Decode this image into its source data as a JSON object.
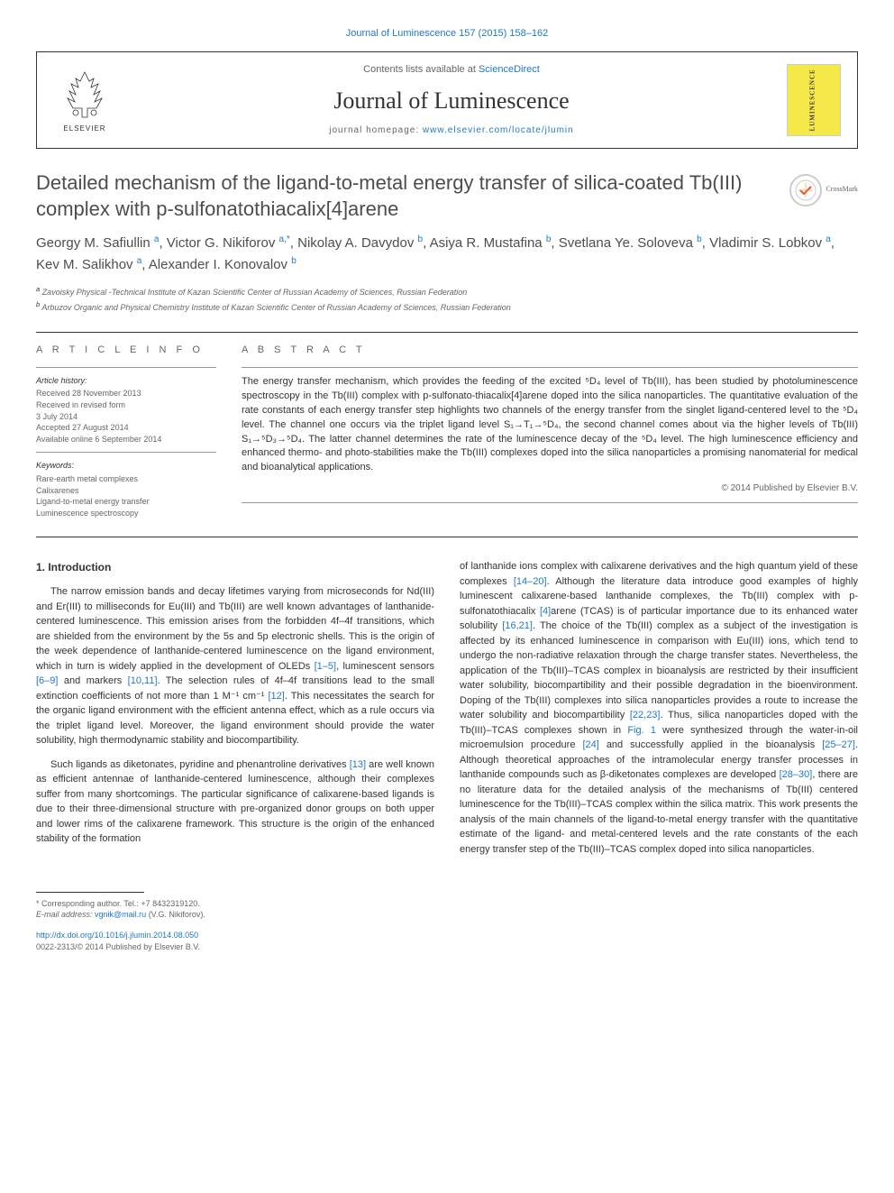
{
  "top_link": "Journal of Luminescence 157 (2015) 158–162",
  "header": {
    "contents_prefix": "Contents lists available at ",
    "contents_link": "ScienceDirect",
    "journal_name": "Journal of Luminescence",
    "homepage_prefix": "journal homepage: ",
    "homepage_link": "www.elsevier.com/locate/jlumin",
    "elsevier_label": "ELSEVIER",
    "cover_label": "LUMINESCENCE"
  },
  "crossmark_label": "CrossMark",
  "title": "Detailed mechanism of the ligand-to-metal energy transfer of silica-coated Tb(III) complex with p-sulfonatothiacalix[4]arene",
  "authors_html": "Georgy M. Safiullin <sup>a</sup>, Victor G. Nikiforov <sup>a,*</sup>, Nikolay A. Davydov <sup>b</sup>, Asiya R. Mustafina <sup>b</sup>, Svetlana Ye. Soloveva <sup>b</sup>, Vladimir S. Lobkov <sup>a</sup>, Kev M. Salikhov <sup>a</sup>, Alexander I. Konovalov <sup>b</sup>",
  "affiliations": {
    "a": "Zavoisky Physical -Technical Institute of Kazan Scientific Center of Russian Academy of Sciences, Russian Federation",
    "b": "Arbuzov Organic and Physical Chemistry Institute of Kazan Scientific Center of Russian Academy of Sciences, Russian Federation"
  },
  "article_info": {
    "label": "A R T I C L E  I N F O",
    "history_label": "Article history:",
    "history": [
      "Received 28 November 2013",
      "Received in revised form",
      "3 July 2014",
      "Accepted 27 August 2014",
      "Available online 6 September 2014"
    ],
    "keywords_label": "Keywords:",
    "keywords": [
      "Rare-earth metal complexes",
      "Calixarenes",
      "Ligand-to-metal energy transfer",
      "Luminescence spectroscopy"
    ]
  },
  "abstract": {
    "label": "A B S T R A C T",
    "text": "The energy transfer mechanism, which provides the feeding of the excited ⁵D₄ level of Tb(III), has been studied by photoluminescence spectroscopy in the Tb(III) complex with p-sulfonato-thiacalix[4]arene doped into the silica nanoparticles. The quantitative evaluation of the rate constants of each energy transfer step highlights two channels of the energy transfer from the singlet ligand-centered level to the ⁵D₄ level. The channel one occurs via the triplet ligand level S₁→T₁→⁵D₄, the second channel comes about via the higher levels of Tb(III) S₁→⁵D₃→⁵D₄. The latter channel determines the rate of the luminescence decay of the ⁵D₄ level. The high luminescence efficiency and enhanced thermo- and photo-stabilities make the Tb(III) complexes doped into the silica nanoparticles a promising nanomaterial for medical and bioanalytical applications.",
    "copyright": "© 2014 Published by Elsevier B.V."
  },
  "body": {
    "heading": "1. Introduction",
    "col1_p1": "The narrow emission bands and decay lifetimes varying from microseconds for Nd(III) and Er(III) to milliseconds for Eu(III) and Tb(III) are well known advantages of lanthanide-centered luminescence. This emission arises from the forbidden 4f–4f transitions, which are shielded from the environment by the 5s and 5p electronic shells. This is the origin of the week dependence of lanthanide-centered luminescence on the ligand environment, which in turn is widely applied in the development of OLEDs ",
    "col1_ref1": "[1–5]",
    "col1_p1b": ", luminescent sensors ",
    "col1_ref2": "[6–9]",
    "col1_p1c": " and markers ",
    "col1_ref3": "[10,11]",
    "col1_p1d": ". The selection rules of 4f–4f transitions lead to the small extinction coefficients of not more than 1 M⁻¹ cm⁻¹ ",
    "col1_ref4": "[12]",
    "col1_p1e": ". This necessitates the search for the organic ligand environment with the efficient antenna effect, which as a rule occurs via the triplet ligand level. Moreover, the ligand environment should provide the water solubility, high thermodynamic stability and biocompartibility.",
    "col1_p2": "Such ligands as diketonates, pyridine and phenantroline derivatives ",
    "col1_ref5": "[13]",
    "col1_p2b": " are well known as efficient antennae of lanthanide-centered luminescence, although their complexes suffer from many shortcomings. The particular significance of calixarene-based ligands is due to their three-dimensional structure with pre-organized donor groups on both upper and lower rims of the calixarene framework. This structure is the origin of the enhanced stability of the formation",
    "col2_p1a": "of lanthanide ions complex with calixarene derivatives and the high quantum yield of these complexes ",
    "col2_ref1": "[14–20]",
    "col2_p1b": ". Although the literature data introduce good examples of highly luminescent calixarene-based lanthanide complexes, the Tb(III) complex with p-sulfonatothiacalix ",
    "col2_ref2": "[4]",
    "col2_p1c": "arene (TCAS) is of particular importance due to its enhanced water solubility ",
    "col2_ref3": "[16,21]",
    "col2_p1d": ". The choice of the Tb(III) complex as a subject of the investigation is affected by its enhanced luminescence in comparison with Eu(III) ions, which tend to undergo the non-radiative relaxation through the charge transfer states. Nevertheless, the application of the Tb(III)–TCAS complex in bioanalysis are restricted by their insufficient water solubility, biocompartibility and their possible degradation in the bioenvironment. Doping of the Tb(III) complexes into silica nanoparticles provides a route to increase the water solubility and biocompartibility ",
    "col2_ref4": "[22,23]",
    "col2_p1e": ". Thus, silica nanoparticles doped with the Tb(III)–TCAS complexes shown in ",
    "col2_ref5": "Fig. 1",
    "col2_p1f": " were synthesized through the water-in-oil microemulsion procedure ",
    "col2_ref6": "[24]",
    "col2_p1g": " and successfully applied in the bioanalysis ",
    "col2_ref7": "[25–27]",
    "col2_p1h": ". Although theoretical approaches of the intramolecular energy transfer processes in lanthanide compounds such as β-diketonates complexes are developed ",
    "col2_ref8": "[28–30]",
    "col2_p1i": ", there are no literature data for the detailed analysis of the mechanisms of Tb(III) centered luminescence for the Tb(III)–TCAS complex within the silica matrix. This work presents the analysis of the main channels of the ligand-to-metal energy transfer with the quantitative estimate of the ligand- and metal-centered levels and the rate constants of the each energy transfer step of the Tb(III)–TCAS complex doped into silica nanoparticles."
  },
  "footnotes": {
    "corresponding": "* Corresponding author. Tel.: +7 8432319120.",
    "email_label": "E-mail address: ",
    "email": "vgnik@mail.ru",
    "email_name": " (V.G. Nikiforov).",
    "doi": "http://dx.doi.org/10.1016/j.jlumin.2014.08.050",
    "issn": "0022-2313/© 2014 Published by Elsevier B.V."
  },
  "colors": {
    "link": "#2179c7",
    "text": "#333333",
    "muted": "#666666",
    "cover_bg": "#f5e94a"
  }
}
